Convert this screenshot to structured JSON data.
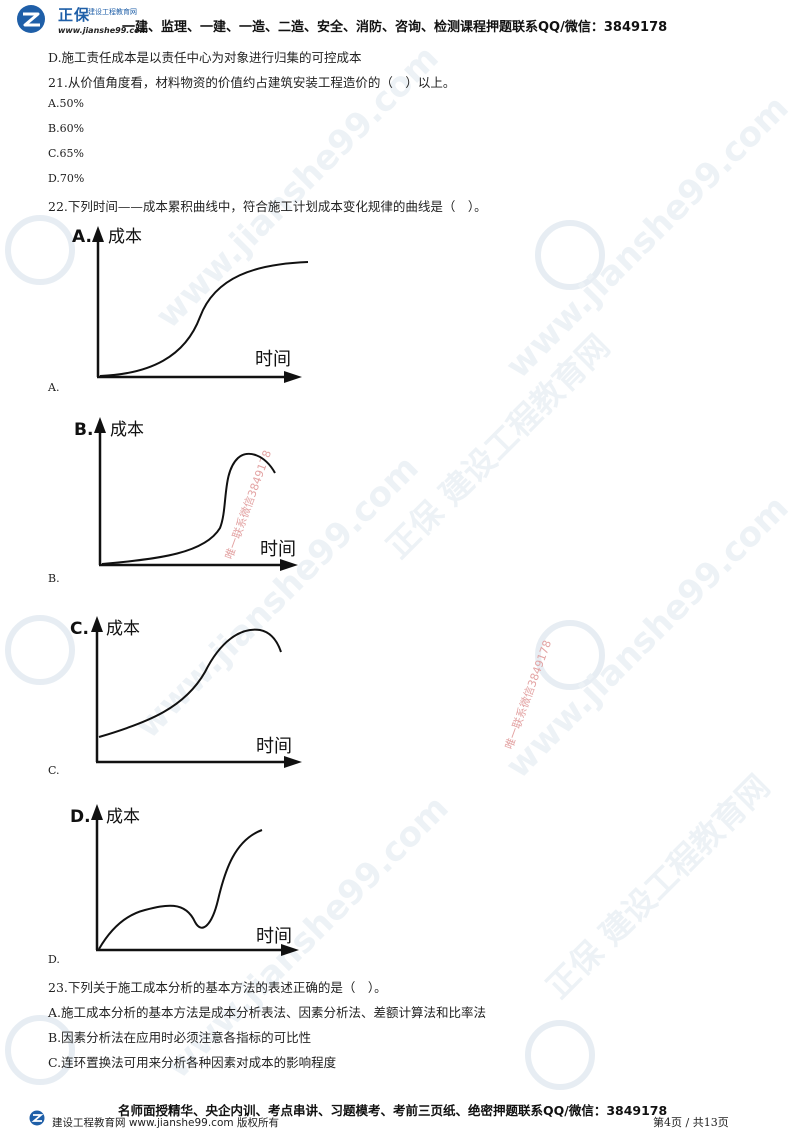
{
  "header": {
    "brand": "正保",
    "brand_sub": "建设工程教育网",
    "url": "www.jianshe99.com",
    "text": "一建、监理、一建、一造、二造、安全、消防、咨询、检测课程押题联系QQ/微信：3849178"
  },
  "lines": {
    "prev_option_d": "D.施工责任成本是以责任中心为对象进行归集的可控成本",
    "q21": "21.从价值角度看，材料物资的价值约占建筑安装工程造价的（　）以上。",
    "q21_a": "A.50%",
    "q21_b": "B.60%",
    "q21_c": "C.65%",
    "q21_d": "D.70%",
    "q22": "22.下列时间——成本累积曲线中，符合施工计划成本变化规律的曲线是（　）。",
    "q23": "23.下列关于施工成本分析的基本方法的表述正确的是（　）。",
    "q23_a": "A.施工成本分析的基本方法是成本分析表法、因素分析法、差额计算法和比率法",
    "q23_b": "B.因素分析法在应用时必须注意各指标的可比性",
    "q23_c": "C.连环置换法可用来分析各种因素对成本的影响程度"
  },
  "graphs": [
    {
      "letter": "A.",
      "ylabel": "成本",
      "xlabel": "时间",
      "option": "A."
    },
    {
      "letter": "B.",
      "ylabel": "成本",
      "xlabel": "时间",
      "option": "B."
    },
    {
      "letter": "C.",
      "ylabel": "成本",
      "xlabel": "时间",
      "option": "C."
    },
    {
      "letter": "D.",
      "ylabel": "成本",
      "xlabel": "时间",
      "option": "D."
    }
  ],
  "watermark": {
    "site": "www.jianshe99.com",
    "brand": "正保 建设工程教育网",
    "contact": "唯一联系微信3849178"
  },
  "footer": {
    "text": "名师面授精华、央企内训、考点串讲、习题模考、考前三页纸、绝密押题联系QQ/微信：3849178",
    "site": "建设工程教育网 www.jianshe99.com 版权所有",
    "page": "第4页 / 共13页"
  },
  "colors": {
    "brand_blue": "#1f5fa8",
    "watermark": "#dfe7ef",
    "stamp_red": "#e3a3a3"
  }
}
